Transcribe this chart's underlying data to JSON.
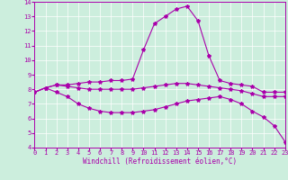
{
  "background_color": "#cceedd",
  "line_color": "#aa00aa",
  "xlabel": "Windchill (Refroidissement éolien,°C)",
  "xlim": [
    0,
    23
  ],
  "ylim": [
    4,
    14
  ],
  "yticks": [
    4,
    5,
    6,
    7,
    8,
    9,
    10,
    11,
    12,
    13,
    14
  ],
  "xticks": [
    0,
    1,
    2,
    3,
    4,
    5,
    6,
    7,
    8,
    9,
    10,
    11,
    12,
    13,
    14,
    15,
    16,
    17,
    18,
    19,
    20,
    21,
    22,
    23
  ],
  "curve1_x": [
    0,
    1,
    2,
    3,
    4,
    5,
    6,
    7,
    8,
    9,
    10,
    11,
    12,
    13,
    14,
    15,
    16,
    17,
    18,
    19,
    20,
    21,
    22,
    23
  ],
  "curve1_y": [
    7.8,
    8.1,
    8.3,
    8.3,
    8.4,
    8.5,
    8.5,
    8.6,
    8.6,
    8.7,
    10.7,
    12.5,
    13.0,
    13.5,
    13.7,
    12.7,
    10.3,
    8.6,
    8.4,
    8.3,
    8.2,
    7.8,
    7.8,
    7.8
  ],
  "curve2_x": [
    0,
    1,
    2,
    3,
    4,
    5,
    6,
    7,
    8,
    9,
    10,
    11,
    12,
    13,
    14,
    15,
    16,
    17,
    18,
    19,
    20,
    21,
    22,
    23
  ],
  "curve2_y": [
    7.8,
    8.1,
    8.3,
    8.2,
    8.1,
    8.0,
    8.0,
    8.0,
    8.0,
    8.0,
    8.1,
    8.2,
    8.3,
    8.4,
    8.4,
    8.3,
    8.2,
    8.1,
    8.0,
    7.9,
    7.7,
    7.5,
    7.5,
    7.5
  ],
  "curve3_x": [
    0,
    1,
    2,
    3,
    4,
    5,
    6,
    7,
    8,
    9,
    10,
    11,
    12,
    13,
    14,
    15,
    16,
    17,
    18,
    19,
    20,
    21,
    22,
    23
  ],
  "curve3_y": [
    7.8,
    8.1,
    7.8,
    7.5,
    7.0,
    6.7,
    6.5,
    6.4,
    6.4,
    6.4,
    6.5,
    6.6,
    6.8,
    7.0,
    7.2,
    7.3,
    7.4,
    7.5,
    7.3,
    7.0,
    6.5,
    6.1,
    5.5,
    4.4
  ],
  "marker": "*",
  "marker_size": 3.0,
  "linewidth": 0.8,
  "grid_color": "#ffffff",
  "spine_color": "#aa00aa",
  "tick_fontsize": 5.0,
  "xlabel_fontsize": 5.5
}
